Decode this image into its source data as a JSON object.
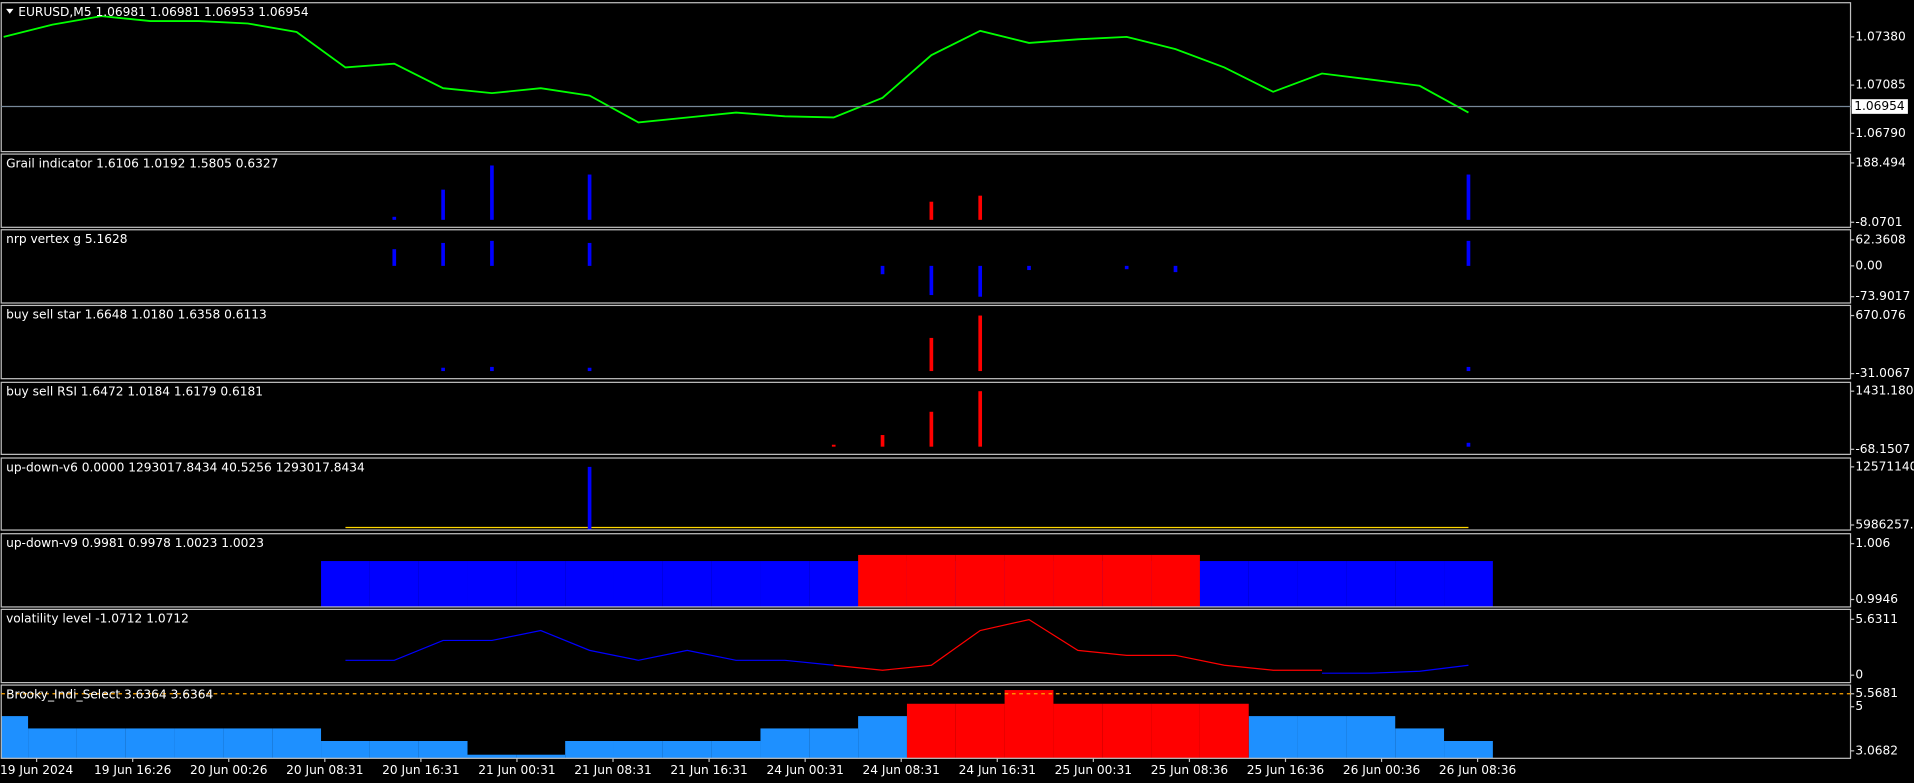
{
  "time_axis": [
    "19 Jun 2024",
    "19 Jun 16:26",
    "20 Jun 00:26",
    "20 Jun 08:31",
    "20 Jun 16:31",
    "21 Jun 00:31",
    "21 Jun 08:31",
    "21 Jun 16:31",
    "24 Jun 00:31",
    "24 Jun 08:31",
    "24 Jun 16:31",
    "25 Jun 00:31",
    "25 Jun 08:36",
    "25 Jun 16:36",
    "26 Jun 00:36",
    "26 Jun 08:36"
  ],
  "chart_data": [
    {
      "type": "line",
      "title": "EURUSD,M5  1.06981 1.06981 1.06953 1.06954",
      "ylim": [
        1.06678,
        1.07589
      ],
      "yticks": [
        {
          "value": 1.0738,
          "label": "1.07380"
        },
        1.07085,
        {
          "value": 1.0679,
          "label": "1.06790"
        }
      ],
      "level": 1.06954,
      "series": [
        {
          "color": "#00ff00",
          "values": [
            1.0738,
            1.07455,
            1.07507,
            1.07477,
            1.07477,
            1.07462,
            1.0741,
            1.07193,
            1.07216,
            1.07066,
            1.07036,
            1.07066,
            1.07021,
            1.06857,
            1.06887,
            1.06917,
            1.06894,
            1.06887,
            1.07007,
            1.07268,
            1.07417,
            1.07343,
            1.07365,
            1.0738,
            1.07305,
            1.07193,
            1.07044,
            1.07156,
            1.07119,
            1.07081,
            1.06917
          ]
        }
      ]
    },
    {
      "type": "bar",
      "title": "Grail indicator 1.6106 1.0192 1.5805 0.6327",
      "ylim": [
        -24.8,
        217.77
      ],
      "yticks": [
        188.494,
        -8.0701
      ],
      "series": [
        {
          "color": "#0000ff",
          "values": [
            null,
            null,
            null,
            null,
            null,
            null,
            null,
            null,
            10,
            100,
            180,
            null,
            150,
            null,
            null,
            null,
            null,
            null,
            null,
            null,
            null,
            null,
            null,
            null,
            null,
            null,
            null,
            null,
            null,
            null,
            150
          ]
        },
        {
          "color": "#ff0000",
          "values": [
            null,
            null,
            null,
            null,
            null,
            null,
            null,
            null,
            null,
            null,
            null,
            null,
            null,
            null,
            null,
            null,
            null,
            null,
            null,
            60,
            80,
            null,
            null,
            null,
            null,
            null,
            null,
            null,
            null,
            null,
            null
          ]
        }
      ]
    },
    {
      "type": "bar",
      "title": "nrp vertex g 5.1628",
      "ylim": [
        -89.04,
        86.58
      ],
      "yticks": [
        62.3608,
        {
          "value": 0,
          "label": "0.00"
        },
        -73.9017
      ],
      "series": [
        {
          "color": "#0000ff",
          "values": [
            null,
            null,
            null,
            null,
            null,
            null,
            null,
            null,
            40,
            55,
            60,
            null,
            55,
            null,
            null,
            null,
            null,
            null,
            -20,
            -70,
            -74,
            -10,
            null,
            -8,
            -15,
            null,
            null,
            null,
            null,
            null,
            60
          ]
        }
      ]
    },
    {
      "type": "bar",
      "title": "buy sell star 1.6648 1.0180 1.6358 0.6113",
      "ylim": [
        -92.0,
        792.0
      ],
      "yticks": [
        670.076,
        -31.0067
      ],
      "series": [
        {
          "color": "#0000ff",
          "values": [
            null,
            null,
            null,
            null,
            null,
            null,
            null,
            null,
            null,
            40,
            50,
            null,
            40,
            null,
            null,
            null,
            null,
            null,
            null,
            null,
            null,
            null,
            null,
            null,
            null,
            null,
            null,
            null,
            null,
            null,
            50
          ]
        },
        {
          "color": "#ff0000",
          "values": [
            null,
            null,
            null,
            null,
            null,
            null,
            null,
            null,
            null,
            null,
            null,
            null,
            null,
            null,
            null,
            null,
            null,
            null,
            null,
            400,
            670,
            null,
            null,
            null,
            null,
            null,
            null,
            null,
            null,
            null,
            null
          ]
        }
      ]
    },
    {
      "type": "bar",
      "title": "buy sell RSI 1.6472 1.0184 1.6179 0.6181",
      "ylim": [
        -198.5,
        1659.3
      ],
      "yticks": [
        1431.1801,
        -68.1507
      ],
      "series": [
        {
          "color": "#ff0000",
          "values": [
            null,
            null,
            null,
            null,
            null,
            null,
            null,
            null,
            null,
            null,
            null,
            null,
            null,
            null,
            null,
            null,
            null,
            50,
            300,
            900,
            1431,
            null,
            null,
            null,
            null,
            null,
            null,
            null,
            null,
            null,
            null
          ]
        },
        {
          "color": "#0000ff",
          "values": [
            null,
            null,
            null,
            null,
            null,
            null,
            null,
            null,
            null,
            null,
            null,
            null,
            null,
            null,
            null,
            null,
            null,
            null,
            null,
            null,
            null,
            null,
            null,
            null,
            null,
            null,
            null,
            null,
            null,
            null,
            100
          ]
        }
      ]
    },
    {
      "type": "line",
      "title": "up-down-v6 0.0000 1293017.8434 40.5256 1293017.8434",
      "ylim": [
        5413657,
        13573190
      ],
      "yticks": [
        12571140,
        5986257.5
      ],
      "series": [
        {
          "color": "#ffd700",
          "values": [
            null,
            null,
            null,
            null,
            null,
            null,
            null,
            5700000,
            5700000,
            5700000,
            5700000,
            5700000,
            5700000,
            5700000,
            5700000,
            5700000,
            5700000,
            5700000,
            5700000,
            5700000,
            5700000,
            5700000,
            5700000,
            5700000,
            5700000,
            5700000,
            5700000,
            5700000,
            5700000,
            5700000,
            5700000
          ]
        },
        {
          "type": "bar",
          "color": "#0000ff",
          "values": [
            null,
            null,
            null,
            null,
            null,
            null,
            null,
            null,
            null,
            null,
            null,
            null,
            12571140,
            null,
            null,
            null,
            null,
            null,
            null,
            null,
            null,
            null,
            null,
            null,
            null,
            null,
            null,
            null,
            null,
            null,
            null
          ]
        }
      ]
    },
    {
      "type": "column",
      "title": "up-down-v9 0.9981 0.9978 1.0023 1.0023",
      "ylim": [
        0.99308,
        1.00803
      ],
      "yticks": [
        1.006,
        0.9946
      ],
      "series": [
        {
          "color": "#0000ff",
          "values": [
            null,
            null,
            null,
            null,
            null,
            null,
            null,
            1.00245,
            1.00245,
            1.00245,
            1.00245,
            1.00245,
            1.00245,
            1.00245,
            1.00245,
            1.00245,
            1.00245,
            1.00245,
            1.00245,
            1.00245,
            1.00245,
            1.00245,
            1.00245,
            1.00245,
            1.00245,
            1.00245,
            1.00245,
            1.00245,
            1.00245,
            1.00245,
            1.00245
          ]
        },
        {
          "color": "#ff0000",
          "values": [
            null,
            null,
            null,
            null,
            null,
            null,
            null,
            null,
            null,
            null,
            null,
            null,
            null,
            null,
            null,
            null,
            null,
            null,
            1.0037,
            1.0037,
            1.0037,
            1.0037,
            1.0037,
            1.0037,
            1.0037,
            null,
            null,
            null,
            null,
            null,
            null
          ]
        }
      ]
    },
    {
      "type": "line",
      "title": "volatility level -1.0712 1.0712",
      "ylim": [
        -0.75,
        6.63
      ],
      "yticks": [
        5.6311,
        0
      ],
      "series": [
        {
          "color": "#0000ff",
          "values": [
            null,
            null,
            null,
            null,
            null,
            null,
            null,
            1.5,
            1.5,
            3.5,
            3.5,
            4.5,
            2.5,
            1.5,
            2.5,
            1.5,
            1.5,
            1.0,
            null,
            null,
            null,
            null,
            null,
            null,
            null,
            null,
            null,
            0.2,
            0.2,
            0.4,
            1.0
          ]
        },
        {
          "color": "#ff0000",
          "values": [
            null,
            null,
            null,
            null,
            null,
            null,
            null,
            null,
            null,
            null,
            null,
            null,
            null,
            null,
            null,
            null,
            null,
            1.0,
            0.5,
            1.0,
            4.5,
            5.6,
            2.5,
            2.0,
            2.0,
            1.0,
            0.5,
            0.5,
            null,
            null,
            null
          ]
        }
      ]
    },
    {
      "type": "column",
      "title": "Brooky_Indi_Select 3.6364 3.6364",
      "ylim": [
        2.742,
        5.9485
      ],
      "yticks": [
        5.5681,
        5,
        3.0682
      ],
      "level": 5.5681,
      "level_color": "#ffa500",
      "series": [
        {
          "color": "#1e90ff",
          "values": [
            4.59,
            4.05,
            4.05,
            4.05,
            4.05,
            4.05,
            4.05,
            3.5,
            3.5,
            3.5,
            2.9,
            2.9,
            3.5,
            3.5,
            3.5,
            3.5,
            4.05,
            4.05,
            4.59,
            null,
            null,
            null,
            null,
            null,
            null,
            null,
            4.59,
            4.59,
            4.59,
            4.05,
            3.5
          ]
        },
        {
          "color": "#ff0000",
          "values": [
            null,
            null,
            null,
            null,
            null,
            null,
            null,
            null,
            null,
            null,
            null,
            null,
            null,
            null,
            null,
            null,
            null,
            null,
            null,
            5.13,
            5.13,
            5.73,
            5.13,
            5.13,
            5.13,
            5.13,
            null,
            null,
            null,
            null,
            null
          ]
        }
      ]
    }
  ]
}
